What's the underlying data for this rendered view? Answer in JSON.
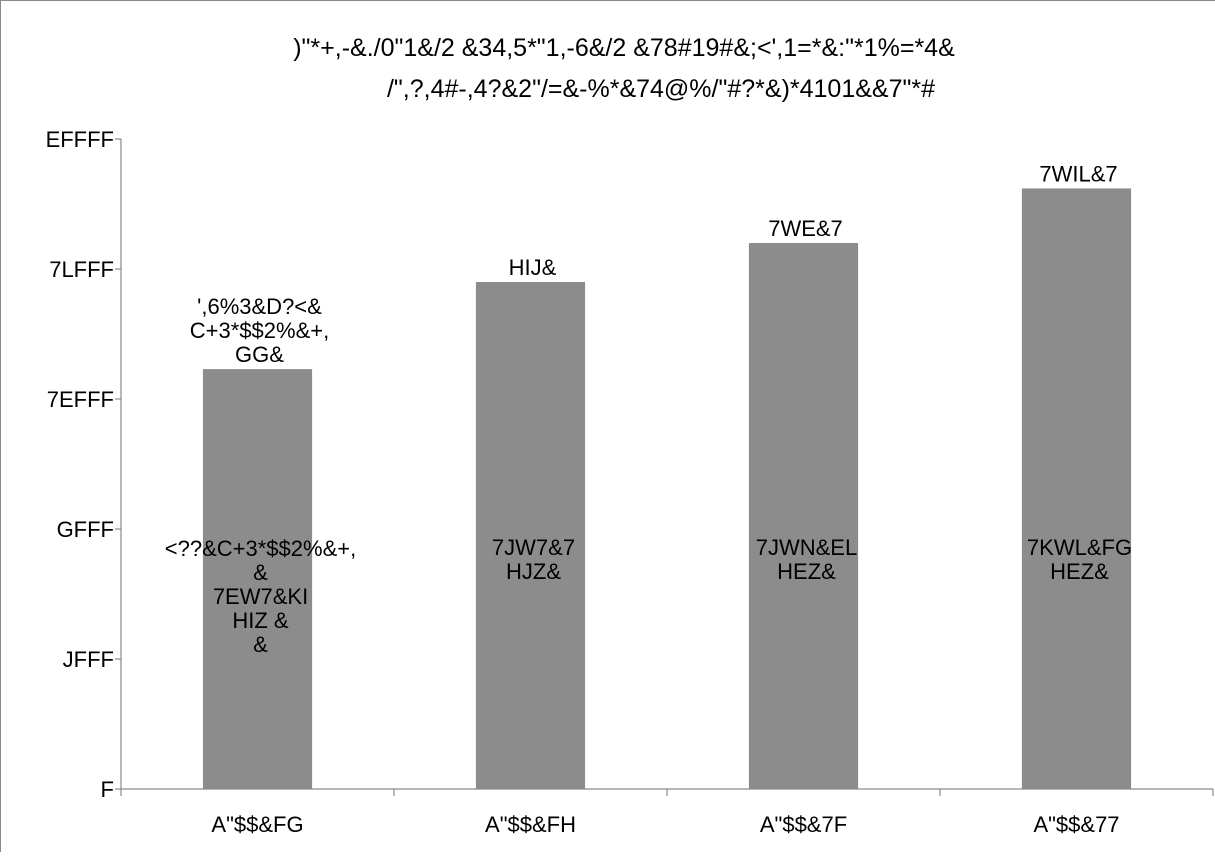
{
  "chart_data": {
    "type": "bar",
    "title_lines": [
      ")\"*+,-&./0\"1&/2 &34,5*\"1,-6&/2 &78#19#&;<',1=*&:\"*1%=*4&",
      "/\",?,4#-,4?&2\"/=&-%*&74@%/\"#?*&)*4101&&7\"*#"
    ],
    "categories": [
      "A\"$$&FG",
      "A\"$$&FH",
      "A\"$$&7F",
      "A\"$$&77"
    ],
    "values": [
      1615,
      1950,
      2100,
      2310
    ],
    "yticks": [
      "F",
      "JFFF",
      "GFFF",
      "7EFFF",
      "7LFFF",
      "EFFFF"
    ],
    "ylim": [
      0,
      5
    ],
    "tick_values": [
      0,
      1,
      2,
      3,
      4,
      5
    ],
    "top_labels": [
      [
        "',6%3&D?<&",
        "C+3*$$2%&+,",
        "GG&"
      ],
      [
        "HIJ&"
      ],
      [
        "7WE&7"
      ],
      [
        "7WIL&7"
      ]
    ],
    "mid_labels": [
      [
        "<??&C+3*$$2%&+,",
        "&",
        "7EW7&KI",
        "HIZ &",
        "&"
      ],
      [
        "7JW7&7",
        "HJZ&"
      ],
      [
        "7JWN&EL",
        "HEZ&"
      ],
      [
        "7KWL&FG",
        "HEZ&"
      ]
    ],
    "bar_color": "#8c8c8c",
    "axis_color": "#8a8a8a",
    "grid": false,
    "legend": "none"
  }
}
